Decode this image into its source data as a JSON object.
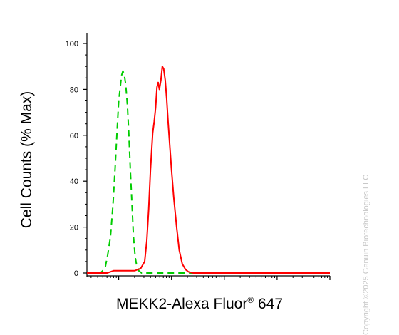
{
  "chart_data": {
    "type": "area",
    "title": "",
    "ylabel": "Cell Counts (% Max)",
    "xlabel": {
      "main": "MEKK2-Alexa Fluor",
      "superscript": "®",
      "suffix": " 647"
    },
    "x_scale": "log",
    "xlim": [
      0.25,
      10000
    ],
    "ylim": [
      0,
      100
    ],
    "yticks": [
      "0",
      "20",
      "40",
      "60",
      "80",
      "100"
    ],
    "grid": false,
    "series": [
      {
        "color": "#00cc00",
        "line_style": "dashed",
        "points": [
          [
            0.25,
            0
          ],
          [
            0.45,
            0
          ],
          [
            0.55,
            2
          ],
          [
            0.62,
            8
          ],
          [
            0.7,
            16
          ],
          [
            0.78,
            30
          ],
          [
            0.85,
            45
          ],
          [
            0.93,
            62
          ],
          [
            1.0,
            75
          ],
          [
            1.07,
            81
          ],
          [
            1.13,
            86
          ],
          [
            1.2,
            88
          ],
          [
            1.28,
            86
          ],
          [
            1.36,
            82
          ],
          [
            1.46,
            73
          ],
          [
            1.56,
            60
          ],
          [
            1.66,
            45
          ],
          [
            1.78,
            30
          ],
          [
            1.9,
            16
          ],
          [
            2.05,
            7
          ],
          [
            2.2,
            3
          ],
          [
            2.4,
            1
          ],
          [
            2.7,
            0
          ],
          [
            4,
            0
          ],
          [
            10000,
            0
          ]
        ]
      },
      {
        "color": "#ff0000",
        "line_style": "solid",
        "points": [
          [
            0.25,
            0
          ],
          [
            0.6,
            0
          ],
          [
            0.8,
            1
          ],
          [
            1.5,
            1
          ],
          [
            2.0,
            1
          ],
          [
            2.6,
            2
          ],
          [
            3.1,
            5
          ],
          [
            3.4,
            14
          ],
          [
            3.7,
            28
          ],
          [
            4.0,
            45
          ],
          [
            4.4,
            61
          ],
          [
            4.7,
            66
          ],
          [
            5.0,
            72
          ],
          [
            5.3,
            81
          ],
          [
            5.6,
            83
          ],
          [
            5.9,
            80
          ],
          [
            6.3,
            84
          ],
          [
            6.7,
            90
          ],
          [
            7.1,
            89
          ],
          [
            7.6,
            84
          ],
          [
            8.1,
            76
          ],
          [
            8.6,
            66
          ],
          [
            9.3,
            55
          ],
          [
            10,
            45
          ],
          [
            11,
            33
          ],
          [
            12.5,
            20
          ],
          [
            14,
            10
          ],
          [
            16,
            4
          ],
          [
            18.5,
            1.5
          ],
          [
            21,
            0.5
          ],
          [
            26,
            0
          ],
          [
            200,
            0
          ],
          [
            10000,
            0
          ]
        ]
      }
    ]
  },
  "watermark": "Copyright ©2025 Genuin Biotechnologies LLC"
}
